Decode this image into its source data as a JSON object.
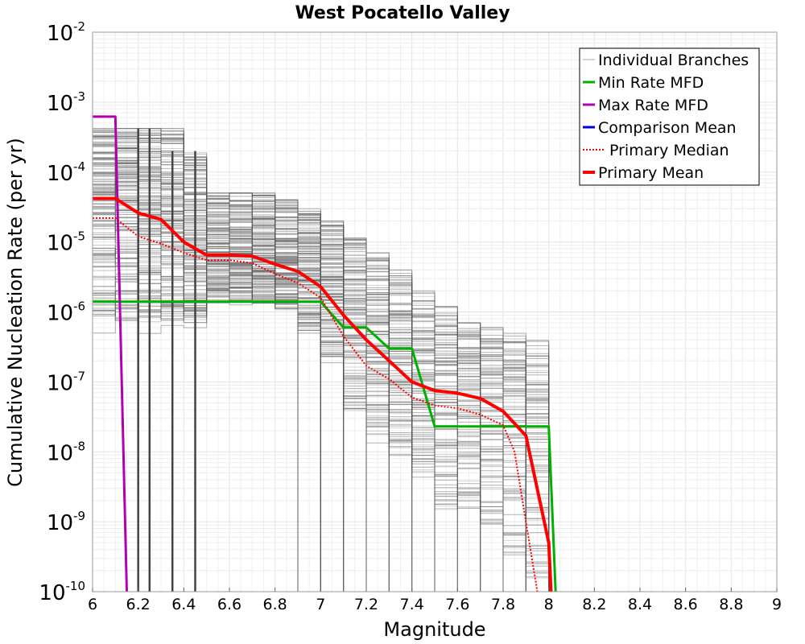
{
  "chart_data": {
    "type": "line",
    "title": "West Pocatello Valley",
    "xlabel": "Magnitude",
    "ylabel": "Cumulative Nucleation Rate (per yr)",
    "xlim": [
      6,
      9
    ],
    "ylim": [
      1e-10,
      0.01
    ],
    "yscale": "log",
    "grid": true,
    "legend_position": "top-right",
    "x_ticks": [
      "6",
      "6.2",
      "6.4",
      "6.6",
      "6.8",
      "7",
      "7.2",
      "7.4",
      "7.6",
      "7.8",
      "8",
      "8.2",
      "8.4",
      "8.6",
      "8.8",
      "9"
    ],
    "y_ticks": [
      {
        "base": "10",
        "exp": "-2"
      },
      {
        "base": "10",
        "exp": "-3"
      },
      {
        "base": "10",
        "exp": "-4"
      },
      {
        "base": "10",
        "exp": "-5"
      },
      {
        "base": "10",
        "exp": "-6"
      },
      {
        "base": "10",
        "exp": "-7"
      },
      {
        "base": "10",
        "exp": "-8"
      },
      {
        "base": "10",
        "exp": "-9"
      },
      {
        "base": "10",
        "exp": "-10"
      }
    ],
    "series": [
      {
        "name": "Individual Branches",
        "color": "#555555",
        "style": "thin",
        "x": [
          6.0,
          6.1,
          6.2,
          6.3,
          6.4,
          6.5,
          6.6,
          6.7,
          6.8,
          6.9,
          7.0,
          7.1,
          7.2,
          7.3,
          7.4,
          7.5,
          7.6,
          7.7,
          7.8,
          7.9,
          8.0
        ],
        "values": [
          4.2e-05,
          4.2e-05,
          2.6e-05,
          2.1e-05,
          1e-05,
          6.5e-06,
          6.5e-06,
          6.3e-06,
          4.8e-06,
          3.8e-06,
          2.3e-06,
          9e-07,
          4e-07,
          2e-07,
          1e-07,
          7.5e-08,
          6.9e-08,
          5.8e-08,
          3.8e-08,
          1.7e-08,
          5e-10
        ],
        "min_envelope": [
          6e-07,
          6e-07,
          6e-07,
          6e-07,
          6e-07,
          1.5e-06,
          1.5e-06,
          1.4e-06,
          1e-06,
          5e-07,
          2e-07,
          3e-08,
          1.5e-08,
          8e-09,
          4e-09,
          1e-09,
          1e-09,
          5e-10,
          2e-10,
          1e-10,
          1e-10
        ],
        "max_envelope": [
          0.00042,
          0.00042,
          0.00042,
          0.00042,
          0.0002,
          5e-05,
          5e-05,
          5e-05,
          4e-05,
          3e-05,
          2e-05,
          1.2e-05,
          7e-06,
          4e-06,
          2e-06,
          1.2e-06,
          7e-07,
          6e-07,
          5e-07,
          4e-07,
          2e-07
        ]
      },
      {
        "name": "Min Rate MFD",
        "color": "#00b000",
        "x": [
          6.0,
          7.0,
          7.1,
          7.2,
          7.3,
          7.4,
          7.5,
          8.0,
          8.03
        ],
        "values": [
          1.4e-06,
          1.4e-06,
          6e-07,
          6e-07,
          3e-07,
          3e-07,
          2.3e-08,
          2.3e-08,
          1e-10
        ]
      },
      {
        "name": "Max Rate MFD",
        "color": "#b000b0",
        "x": [
          6.0,
          6.1,
          6.15
        ],
        "values": [
          0.00062,
          0.00062,
          1e-10
        ]
      },
      {
        "name": "Comparison Mean",
        "color": "#0000dd",
        "x": [],
        "values": []
      },
      {
        "name": "Primary Median",
        "color": "#ff0000",
        "style": "dotted",
        "x": [
          6.0,
          6.1,
          6.2,
          6.3,
          6.4,
          6.5,
          6.6,
          6.7,
          6.8,
          6.9,
          7.0,
          7.1,
          7.2,
          7.3,
          7.4,
          7.5,
          7.6,
          7.7,
          7.8,
          7.85,
          7.9,
          7.95
        ],
        "values": [
          2.2e-05,
          2.2e-05,
          1.2e-05,
          9.5e-06,
          7e-06,
          5.5e-06,
          5.5e-06,
          5e-06,
          3.5e-06,
          2.6e-06,
          1.6e-06,
          4.5e-07,
          1.7e-07,
          1.1e-07,
          6e-08,
          4.6e-08,
          4.2e-08,
          3.4e-08,
          2.4e-08,
          1e-08,
          1e-09,
          1e-10
        ]
      },
      {
        "name": "Primary Mean",
        "color": "#ff0000",
        "style": "thick",
        "x": [
          6.0,
          6.1,
          6.2,
          6.3,
          6.4,
          6.5,
          6.6,
          6.7,
          6.8,
          6.9,
          7.0,
          7.1,
          7.2,
          7.3,
          7.4,
          7.5,
          7.6,
          7.7,
          7.8,
          7.9,
          8.0,
          8.01
        ],
        "values": [
          4.2e-05,
          4.2e-05,
          2.6e-05,
          2.1e-05,
          1e-05,
          6.5e-06,
          6.5e-06,
          6.3e-06,
          4.8e-06,
          3.8e-06,
          2.3e-06,
          9e-07,
          4e-07,
          2e-07,
          1e-07,
          7.5e-08,
          6.9e-08,
          5.8e-08,
          3.8e-08,
          1.7e-08,
          5e-10,
          1e-10
        ]
      }
    ]
  }
}
